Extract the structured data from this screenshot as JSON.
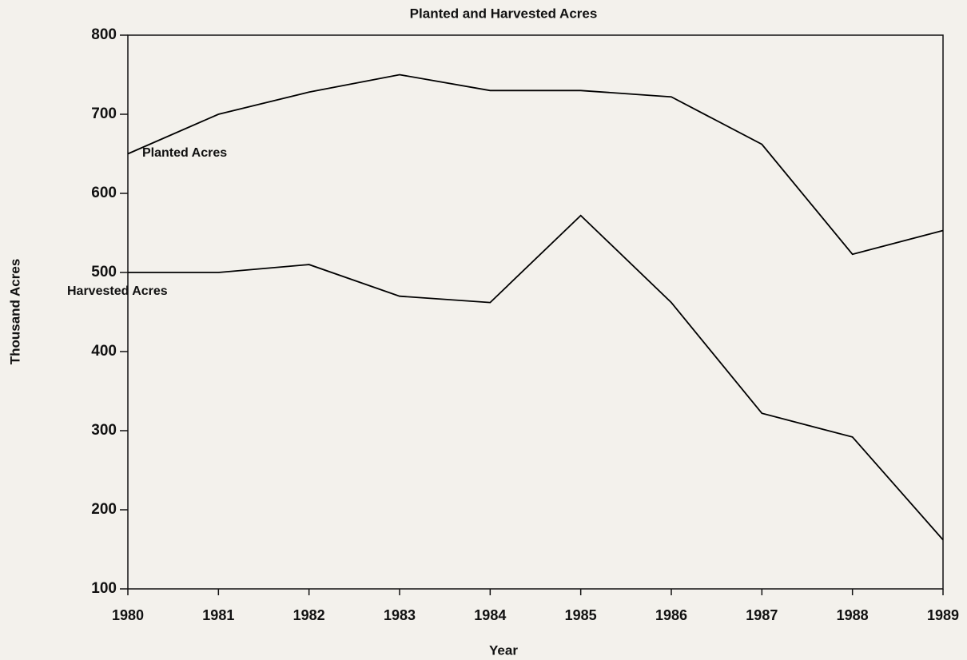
{
  "chart_data": {
    "type": "line",
    "title": "Planted and Harvested Acres",
    "x_label": "Year",
    "y_label": "Thousand Acres",
    "x": [
      1980,
      1981,
      1982,
      1983,
      1984,
      1985,
      1986,
      1987,
      1988,
      1989
    ],
    "xlim": [
      1980,
      1989
    ],
    "xticks": [
      1980,
      1981,
      1982,
      1983,
      1984,
      1985,
      1986,
      1987,
      1988,
      1989
    ],
    "ylim": [
      100,
      800
    ],
    "yticks": [
      100,
      200,
      300,
      400,
      500,
      600,
      700,
      800
    ],
    "series": [
      {
        "name": "Planted Acres",
        "color": "#000000",
        "values": [
          650,
          700,
          728,
          750,
          730,
          730,
          722,
          662,
          523,
          553
        ]
      },
      {
        "name": "Harvested Acres",
        "color": "#000000",
        "values": [
          500,
          500,
          510,
          470,
          462,
          572,
          462,
          322,
          292,
          162
        ]
      }
    ]
  }
}
